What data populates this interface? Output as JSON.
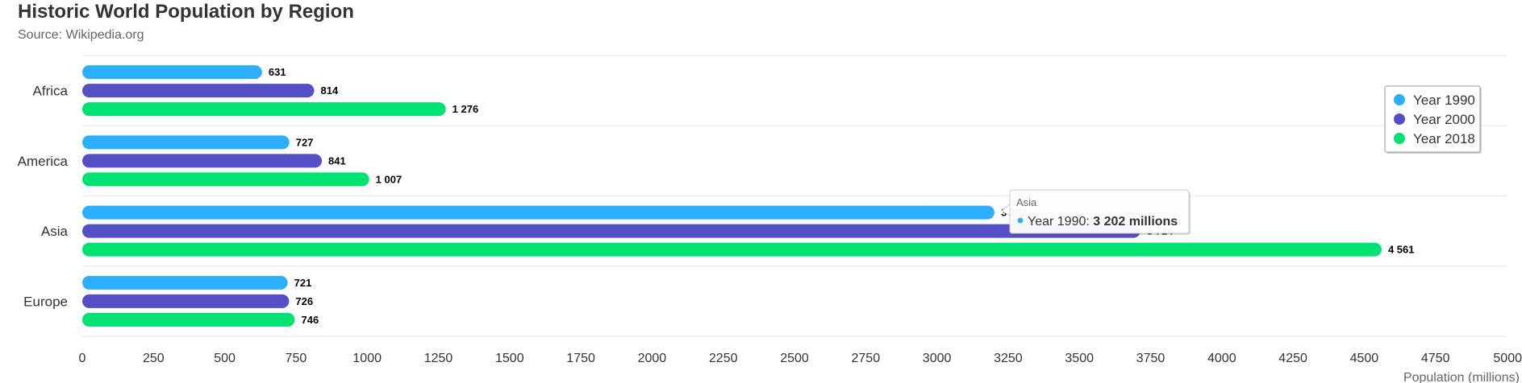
{
  "chart_data": {
    "type": "bar",
    "orientation": "horizontal",
    "title": "Historic World Population by Region",
    "subtitle": "Source: Wikipedia.org",
    "categories": [
      "Africa",
      "America",
      "Asia",
      "Europe"
    ],
    "series": [
      {
        "name": "Year 1990",
        "color": "#2caffe",
        "values": [
          631,
          727,
          3202,
          721
        ],
        "labels": [
          "631",
          "727",
          "3 202",
          "721"
        ]
      },
      {
        "name": "Year 2000",
        "color": "#544fc5",
        "values": [
          814,
          841,
          3714,
          726
        ],
        "labels": [
          "814",
          "841",
          "3 714",
          "726"
        ]
      },
      {
        "name": "Year 2018",
        "color": "#00e272",
        "values": [
          1276,
          1007,
          4561,
          746
        ],
        "labels": [
          "1 276",
          "1 007",
          "4 561",
          "746"
        ]
      }
    ],
    "xlim": [
      0,
      5000
    ],
    "ticks": [
      "0",
      "250",
      "500",
      "750",
      "1000",
      "1250",
      "1500",
      "1750",
      "2000",
      "2250",
      "2500",
      "2750",
      "3000",
      "3250",
      "3500",
      "3750",
      "4000",
      "4250",
      "4500",
      "4750",
      "5000"
    ],
    "ylabel": "Population (millions)",
    "legend_position": "top-right",
    "gridlines": "horizontal between categories",
    "tooltip": {
      "category": "Asia",
      "series": "Year 1990",
      "prefix": "Year 1990: ",
      "value": "3 202 millions",
      "color": "#2caffe"
    }
  }
}
